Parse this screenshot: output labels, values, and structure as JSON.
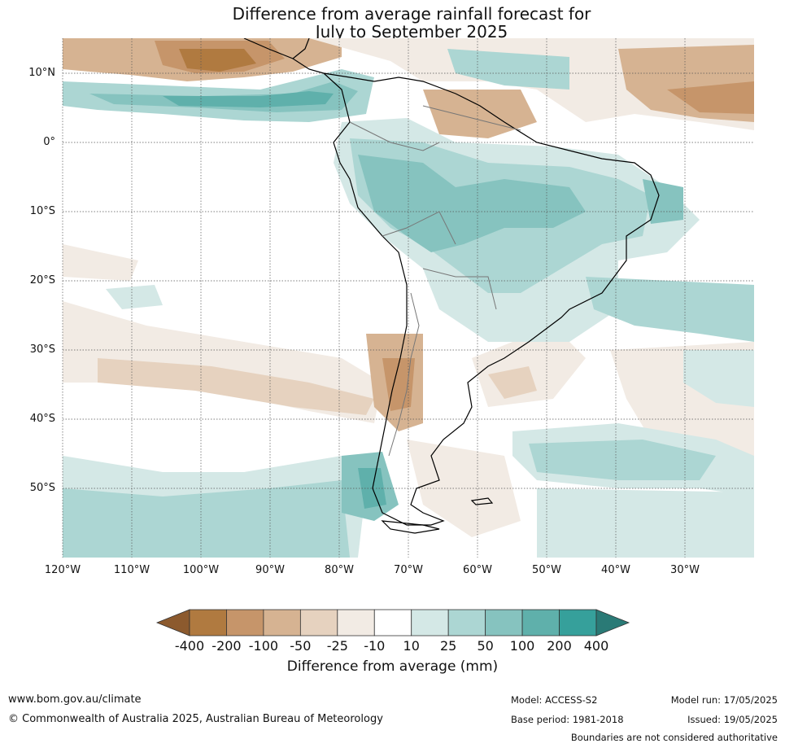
{
  "title": {
    "line1": "Difference from average rainfall forecast for",
    "line2": "July to September 2025"
  },
  "map": {
    "lat_labels": [
      "10°N",
      "0°",
      "10°S",
      "20°S",
      "30°S",
      "40°S",
      "50°S"
    ],
    "lon_labels": [
      "120°W",
      "110°W",
      "100°W",
      "90°W",
      "80°W",
      "70°W",
      "60°W",
      "50°W",
      "40°W",
      "30°W"
    ]
  },
  "colorbar": {
    "title": "Difference from average (mm)",
    "ticks": [
      "-400",
      "-200",
      "-100",
      "-50",
      "-25",
      "-10",
      "10",
      "25",
      "50",
      "100",
      "200",
      "400"
    ],
    "colors": [
      "#8c5a2e",
      "#b07a40",
      "#c6956a",
      "#d6b392",
      "#e6d2bf",
      "#f2ebe4",
      "#ffffff",
      "#d4e8e6",
      "#acd6d3",
      "#86c3bf",
      "#5fb0ab",
      "#36a09b",
      "#2a7a76"
    ]
  },
  "footer": {
    "url": "www.bom.gov.au/climate",
    "copyright": "© Commonwealth of Australia 2025, Australian Bureau of Meteorology",
    "model": "Model: ACCESS-S2",
    "base_period": "Base period: 1981-2018",
    "model_run": "Model run: 17/05/2025",
    "issued": "Issued: 19/05/2025",
    "disclaimer": "Boundaries are not considered authoritative"
  }
}
